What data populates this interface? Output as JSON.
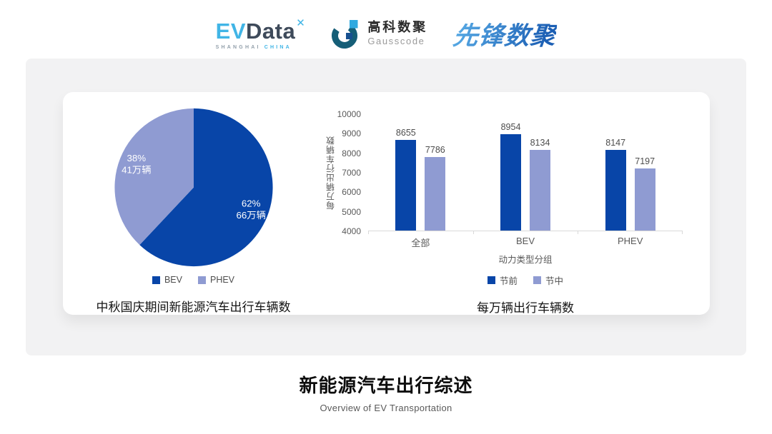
{
  "header": {
    "logos": {
      "evdata": {
        "ev": "EV",
        "data": "Data",
        "star_glyph": "✕",
        "sub_left": "SHANGHAI",
        "sub_right": "CHINA"
      },
      "gausscode": {
        "cn": "高科数聚",
        "en": "Gausscode"
      },
      "xianfeng": {
        "text": "先锋数聚"
      }
    }
  },
  "colors": {
    "primary_blue": "#0845A8",
    "secondary_periwinkle": "#8F9BD2",
    "axis_text": "#595959",
    "panel_gray": "#F2F2F3"
  },
  "chart_data": [
    {
      "type": "pie",
      "title": "中秋国庆期间新能源汽车出行车辆数",
      "start_angle_deg": -90,
      "legend_position": "bottom",
      "slices": [
        {
          "label": "BEV",
          "pct": 62,
          "amount": "66万辆",
          "color": "#0845A8"
        },
        {
          "label": "PHEV",
          "pct": 38,
          "amount": "41万辆",
          "color": "#8F9BD2"
        }
      ]
    },
    {
      "type": "bar",
      "title": "每万辆出行车辆数",
      "ylabel": "每万辆出行车辆数",
      "xlabel": "动力类型分组",
      "categories": [
        "全部",
        "BEV",
        "PHEV"
      ],
      "series": [
        {
          "name": "节前",
          "color": "#0845A8",
          "values": [
            8655,
            8954,
            8147
          ]
        },
        {
          "name": "节中",
          "color": "#8F9BD2",
          "values": [
            7786,
            8134,
            7197
          ]
        }
      ],
      "ylim": [
        4000,
        10000
      ],
      "yticks": [
        10000,
        9000,
        8000,
        7000,
        6000,
        5000,
        4000
      ],
      "grid": false,
      "legend_position": "bottom"
    }
  ],
  "footer": {
    "title": "新能源汽车出行综述",
    "subtitle": "Overview of EV Transportation"
  }
}
